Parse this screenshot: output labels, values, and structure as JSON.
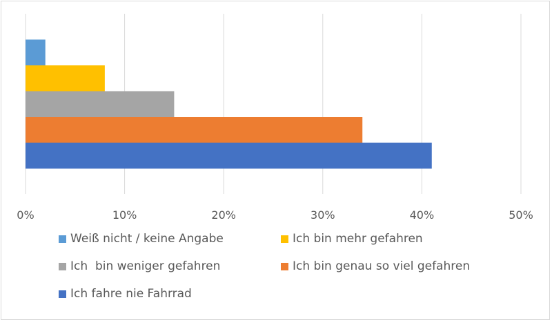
{
  "chart_data": {
    "type": "bar",
    "orientation": "horizontal",
    "title": "",
    "xlabel": "",
    "ylabel": "",
    "xlim": [
      0,
      50
    ],
    "ticks": [
      0,
      10,
      20,
      30,
      40,
      50
    ],
    "tick_labels": [
      "0%",
      "10%",
      "20%",
      "30%",
      "40%",
      "50%"
    ],
    "grid": true,
    "legend_position": "bottom",
    "series": [
      {
        "name": "Weiß nicht / keine Angabe",
        "value": 2,
        "color": "#5B9BD5"
      },
      {
        "name": "Ich bin mehr gefahren",
        "value": 8,
        "color": "#FFC000"
      },
      {
        "name": "Ich  bin weniger gefahren",
        "value": 15,
        "color": "#A5A5A5"
      },
      {
        "name": "Ich bin genau so viel gefahren",
        "value": 34,
        "color": "#ED7D31"
      },
      {
        "name": "Ich fahre nie Fahrrad",
        "value": 41,
        "color": "#4472C4"
      }
    ]
  }
}
